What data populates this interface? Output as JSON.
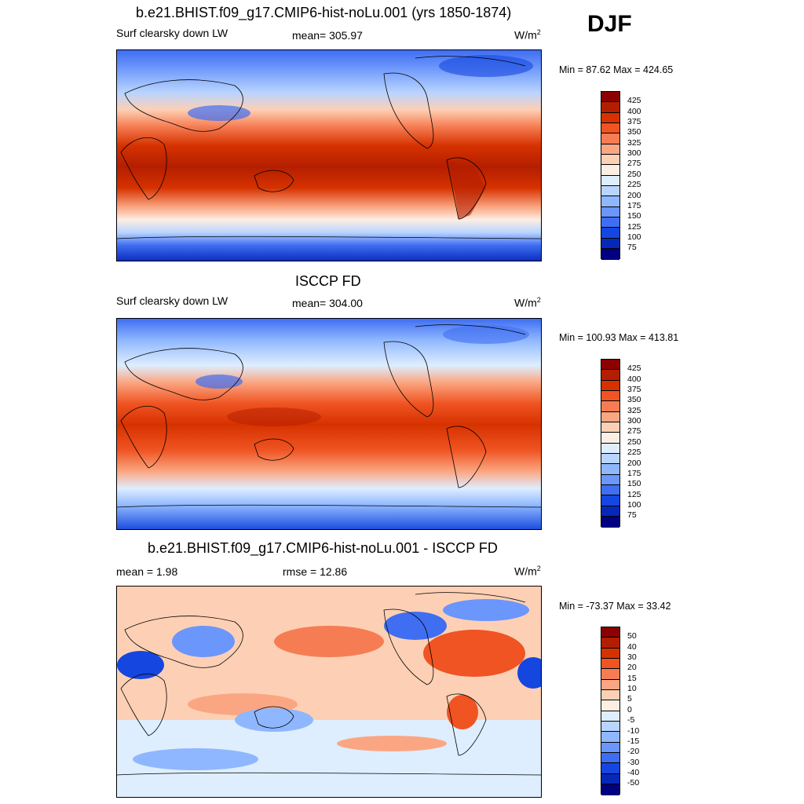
{
  "season": "DJF",
  "panels": [
    {
      "title": "b.e21.BHIST.f09_g17.CMIP6-hist-noLu.001 (yrs 1850-1874)",
      "left_text": "Surf clearsky down LW",
      "center_text": "mean= 305.97",
      "units_base": "W/m",
      "units_exp": "2",
      "minmax": "Min =  87.62 Max = 424.65"
    },
    {
      "title": "ISCCP FD",
      "left_text": "Surf clearsky down LW",
      "center_text": "mean= 304.00",
      "units_base": "W/m",
      "units_exp": "2",
      "minmax": "Min = 100.93 Max = 413.81"
    },
    {
      "title": "b.e21.BHIST.f09_g17.CMIP6-hist-noLu.001 - ISCCP FD",
      "left_text": "mean =   1.98",
      "center_text": "rmse =  12.86",
      "units_base": "W/m",
      "units_exp": "2",
      "minmax": "Min = -73.37 Max =  33.42"
    }
  ],
  "colorbars": {
    "absolute": {
      "labels": [
        "425",
        "400",
        "375",
        "350",
        "325",
        "300",
        "275",
        "250",
        "225",
        "200",
        "175",
        "150",
        "125",
        "100",
        "75"
      ],
      "colors": [
        "#8b0000",
        "#b41e00",
        "#d63200",
        "#ef5422",
        "#f67d53",
        "#fba682",
        "#fdd0b5",
        "#fdeee4",
        "#deeeff",
        "#b9d4ff",
        "#8fb7ff",
        "#6b96fb",
        "#3f6ef2",
        "#1546df",
        "#0628b8",
        "#000080"
      ]
    },
    "difference": {
      "labels": [
        "50",
        "40",
        "30",
        "20",
        "15",
        "10",
        "5",
        "0",
        "-5",
        "-10",
        "-15",
        "-20",
        "-30",
        "-40",
        "-50"
      ],
      "colors": [
        "#8b0000",
        "#b41e00",
        "#d63200",
        "#ef5422",
        "#f67d53",
        "#fba682",
        "#fdd0b5",
        "#fdeee4",
        "#deeeff",
        "#b9d4ff",
        "#8fb7ff",
        "#6b96fb",
        "#3f6ef2",
        "#1546df",
        "#0628b8",
        "#000080"
      ]
    }
  }
}
